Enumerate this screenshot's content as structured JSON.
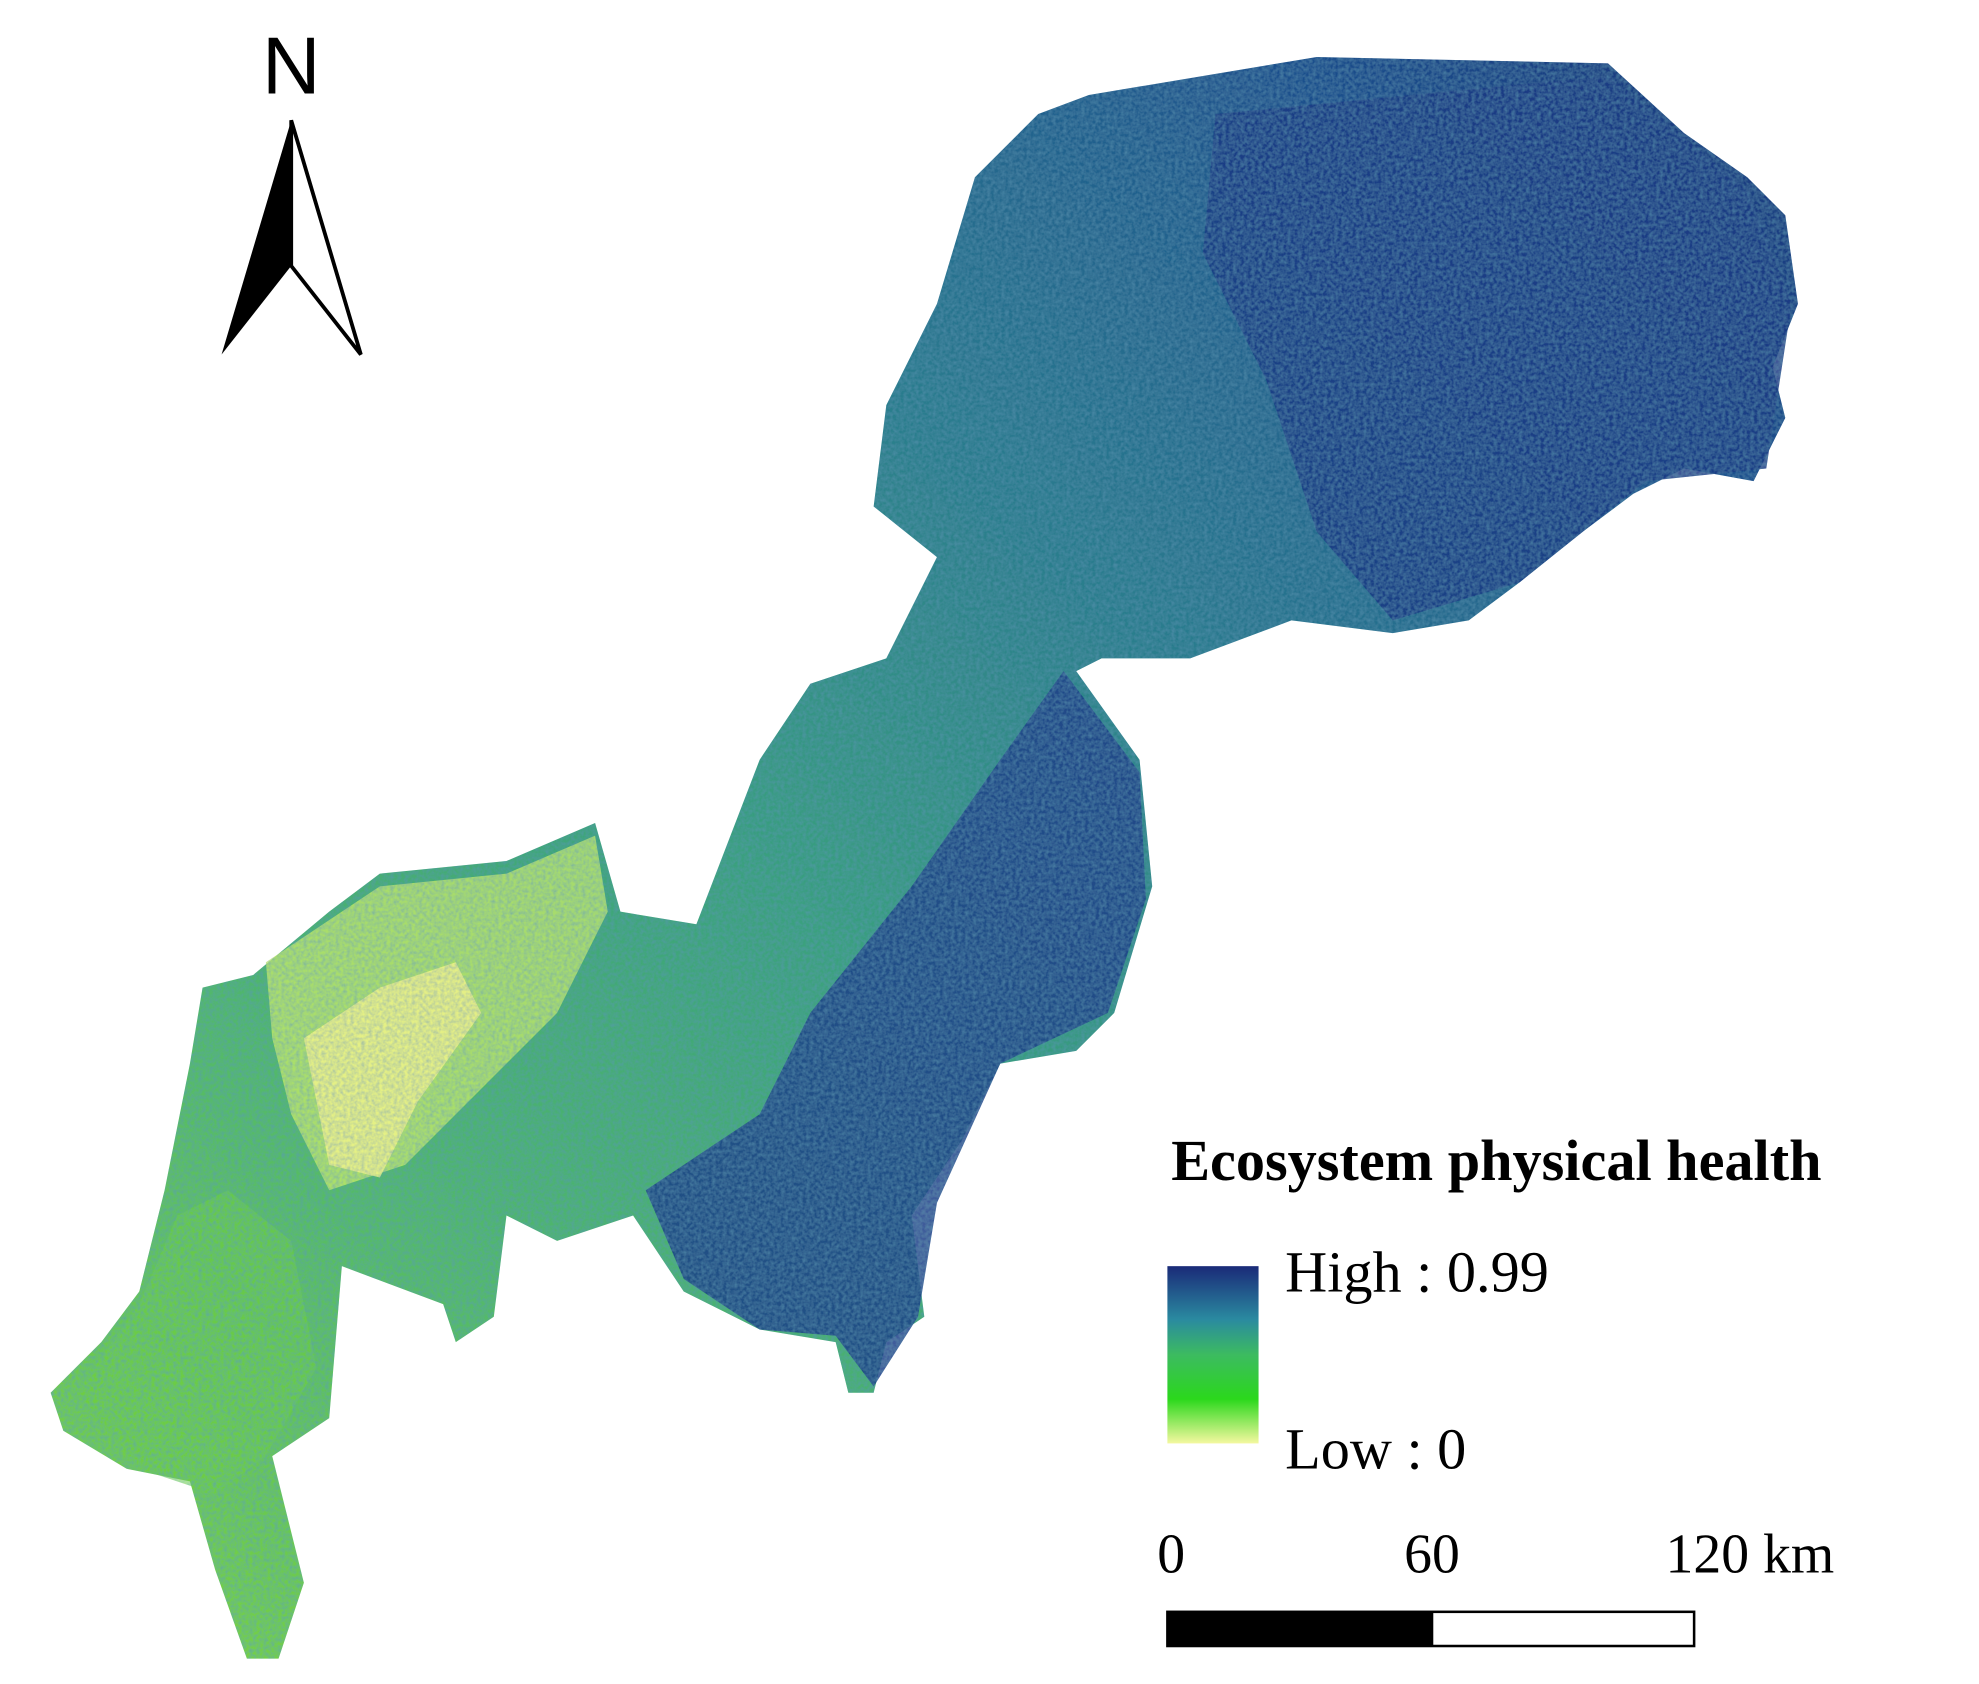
{
  "north_arrow": {
    "label": "N"
  },
  "legend": {
    "title": "Ecosystem physical health",
    "high_label": "High : 0.99",
    "low_label": "Low : 0"
  },
  "scale_bar": {
    "labels": [
      "0",
      "60",
      "120 km"
    ]
  }
}
